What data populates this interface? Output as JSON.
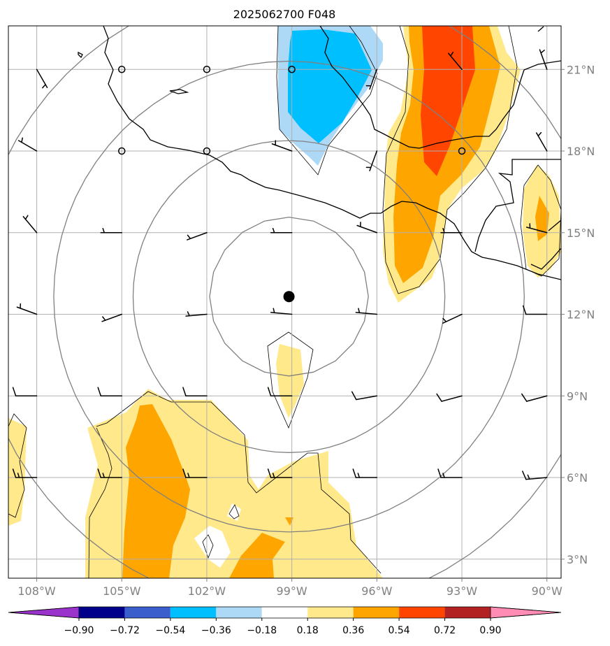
{
  "title": "2025062700 F048",
  "map": {
    "lon_range": [
      -109,
      -89.5
    ],
    "lat_range": [
      2.3,
      22.6
    ],
    "lon_ticks": [
      {
        "lon": -108,
        "label": "108°W"
      },
      {
        "lon": -105,
        "label": "105°W"
      },
      {
        "lon": -102,
        "label": "102°W"
      },
      {
        "lon": -99,
        "label": "99°W"
      },
      {
        "lon": -96,
        "label": "96°W"
      },
      {
        "lon": -93,
        "label": "93°W"
      },
      {
        "lon": -90,
        "label": "90°W"
      }
    ],
    "lat_ticks": [
      {
        "lat": 3,
        "label": "3°N"
      },
      {
        "lat": 6,
        "label": "6°N"
      },
      {
        "lat": 9,
        "label": "9°N"
      },
      {
        "lat": 12,
        "label": "12°N"
      },
      {
        "lat": 15,
        "label": "15°N"
      },
      {
        "lat": 18,
        "label": "18°N"
      },
      {
        "lat": 21,
        "label": "21°N"
      }
    ],
    "center": {
      "lon": -99.1,
      "lat": 12.65
    },
    "range_rings_deg": [
      2.8,
      5.5,
      8.3,
      11.1
    ],
    "gridlines": true
  },
  "colorbar": {
    "levels": [
      "−0.90",
      "−0.72",
      "−0.54",
      "−0.36",
      "−0.18",
      "0.18",
      "0.36",
      "0.54",
      "0.72",
      "0.90"
    ],
    "colors": [
      "#9933cc",
      "#00008b",
      "#3a5fcd",
      "#00bfff",
      "#add8f6",
      "#ffffff",
      "#ffe98a",
      "#ffa500",
      "#ff4500",
      "#b22222",
      "#ff8cb4"
    ],
    "extend": "both"
  },
  "fields": {
    "cyan_light": "#add8f6",
    "cyan_dark": "#00bfff",
    "yellow": "#ffe98a",
    "orange": "#ffa500",
    "red": "#ff4500"
  },
  "wind_barbs": [
    {
      "lon": -108,
      "lat": 21,
      "dir": 150,
      "speed": 5
    },
    {
      "lon": -105,
      "lat": 21,
      "calm": true
    },
    {
      "lon": -102,
      "lat": 21,
      "calm": true
    },
    {
      "lon": -99,
      "lat": 21,
      "calm": true
    },
    {
      "lon": -96,
      "lat": 21,
      "dir": 200,
      "speed": 5
    },
    {
      "lon": -93,
      "lat": 21,
      "dir": 320,
      "speed": 5
    },
    {
      "lon": -90,
      "lat": 21,
      "dir": 340,
      "speed": 5
    },
    {
      "lon": -108,
      "lat": 18,
      "dir": 300,
      "speed": 5
    },
    {
      "lon": -105,
      "lat": 18,
      "calm": true
    },
    {
      "lon": -102,
      "lat": 18,
      "calm": true
    },
    {
      "lon": -99,
      "lat": 18,
      "dir": 290,
      "speed": 5
    },
    {
      "lon": -96,
      "lat": 18,
      "dir": 200,
      "speed": 5
    },
    {
      "lon": -93,
      "lat": 18,
      "calm": true
    },
    {
      "lon": -90,
      "lat": 18,
      "dir": 330,
      "speed": 5
    },
    {
      "lon": -108,
      "lat": 15,
      "dir": 320,
      "speed": 5
    },
    {
      "lon": -105,
      "lat": 15,
      "dir": 270,
      "speed": 5
    },
    {
      "lon": -102,
      "lat": 15,
      "dir": 250,
      "speed": 5
    },
    {
      "lon": -99,
      "lat": 15,
      "dir": 270,
      "speed": 5
    },
    {
      "lon": -96,
      "lat": 15,
      "dir": 290,
      "speed": 5
    },
    {
      "lon": -93,
      "lat": 15,
      "dir": 270,
      "speed": 5
    },
    {
      "lon": -90,
      "lat": 15,
      "dir": 285,
      "speed": 5
    },
    {
      "lon": -108,
      "lat": 12,
      "dir": 290,
      "speed": 5
    },
    {
      "lon": -105,
      "lat": 12,
      "dir": 250,
      "speed": 5
    },
    {
      "lon": -102,
      "lat": 12,
      "dir": 265,
      "speed": 5
    },
    {
      "lon": -99,
      "lat": 12,
      "dir": 275,
      "speed": 5
    },
    {
      "lon": -96,
      "lat": 12,
      "dir": 275,
      "speed": 5
    },
    {
      "lon": -93,
      "lat": 12,
      "dir": 245,
      "speed": 5
    },
    {
      "lon": -90,
      "lat": 12,
      "dir": 270,
      "speed": 10
    },
    {
      "lon": -108,
      "lat": 9,
      "dir": 270,
      "speed": 10
    },
    {
      "lon": -105,
      "lat": 9,
      "dir": 270,
      "speed": 10
    },
    {
      "lon": -102,
      "lat": 9,
      "dir": 270,
      "speed": 10
    },
    {
      "lon": -99,
      "lat": 9,
      "dir": 270,
      "speed": 10
    },
    {
      "lon": -96,
      "lat": 9,
      "dir": 260,
      "speed": 10
    },
    {
      "lon": -93,
      "lat": 9,
      "dir": 255,
      "speed": 10
    },
    {
      "lon": -90,
      "lat": 9,
      "dir": 255,
      "speed": 10
    },
    {
      "lon": -108,
      "lat": 6,
      "dir": 270,
      "speed": 15
    },
    {
      "lon": -105,
      "lat": 6,
      "dir": 270,
      "speed": 15
    },
    {
      "lon": -102,
      "lat": 6,
      "dir": 270,
      "speed": 15
    },
    {
      "lon": -99,
      "lat": 6,
      "dir": 270,
      "speed": 15
    },
    {
      "lon": -96,
      "lat": 6,
      "dir": 270,
      "speed": 15
    },
    {
      "lon": -93,
      "lat": 6,
      "dir": 270,
      "speed": 15
    },
    {
      "lon": -90,
      "lat": 6,
      "dir": 265,
      "speed": 15
    }
  ]
}
